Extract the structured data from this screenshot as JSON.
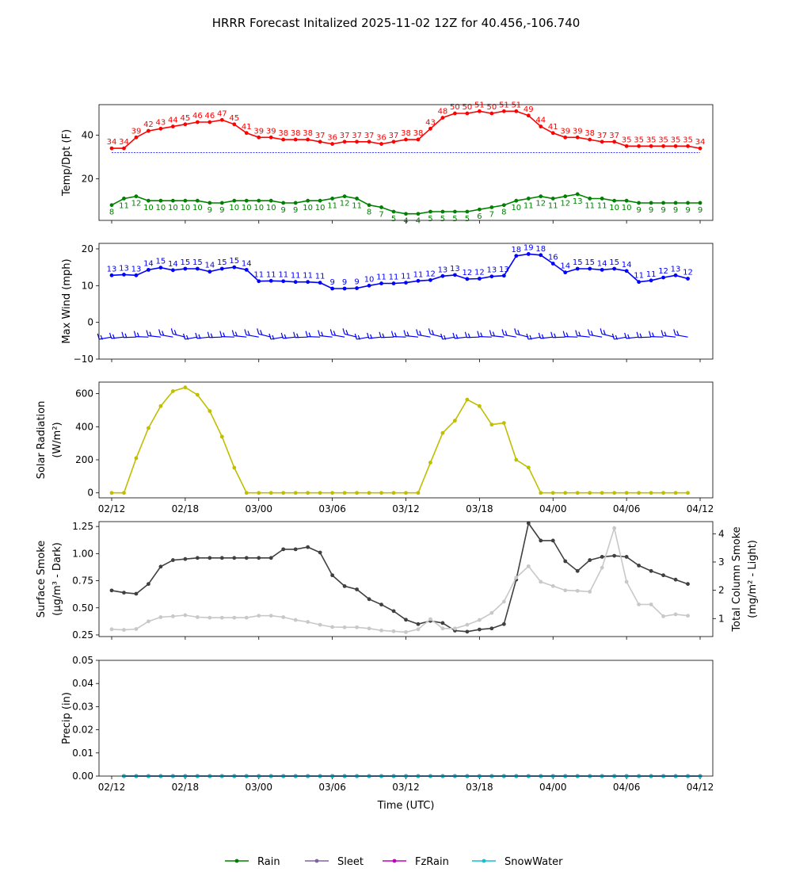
{
  "chart_data": {
    "title": "HRRR Forecast Initalized 2025-11-02 12Z for 40.456,-106.740",
    "xlabel": "Time (UTC)",
    "x_hours": [
      0,
      1,
      2,
      3,
      4,
      5,
      6,
      7,
      8,
      9,
      10,
      11,
      12,
      13,
      14,
      15,
      16,
      17,
      18,
      19,
      20,
      21,
      22,
      23,
      24,
      25,
      26,
      27,
      28,
      29,
      30,
      31,
      32,
      33,
      34,
      35,
      36,
      37,
      38,
      39,
      40,
      41,
      42,
      43,
      44,
      45,
      46,
      47,
      48
    ],
    "x_ticks": [
      {
        "hour": 0,
        "label": "02/12"
      },
      {
        "hour": 6,
        "label": "02/18"
      },
      {
        "hour": 12,
        "label": "03/00"
      },
      {
        "hour": 18,
        "label": "03/06"
      },
      {
        "hour": 24,
        "label": "03/12"
      },
      {
        "hour": 30,
        "label": "03/18"
      },
      {
        "hour": 36,
        "label": "04/00"
      },
      {
        "hour": 42,
        "label": "04/06"
      },
      {
        "hour": 48,
        "label": "04/12"
      }
    ],
    "panels": [
      {
        "type": "line",
        "ylabel": "Temp/Dpt (F)",
        "ylim": [
          1,
          54
        ],
        "yticks": [
          20,
          40
        ],
        "series": [
          {
            "name": "Temperature",
            "color": "#ff0000",
            "values": [
              34,
              34,
              39,
              42,
              43,
              44,
              45,
              46,
              46,
              47,
              45,
              41,
              39,
              39,
              38,
              38,
              38,
              37,
              36,
              37,
              37,
              37,
              36,
              37,
              38,
              38,
              43,
              48,
              50,
              50,
              51,
              50,
              51,
              51,
              49,
              44,
              41,
              39,
              39,
              38,
              37,
              37,
              35,
              35,
              35,
              35,
              35,
              35,
              34
            ],
            "labels": [
              "34",
              "34",
              "39",
              "42",
              "43",
              "44",
              "45",
              "46",
              "46",
              "47",
              "45",
              "41",
              "39",
              "39",
              "38",
              "38",
              "38",
              "37",
              "36",
              "37",
              "37",
              "37",
              "36",
              "37",
              "38",
              "38",
              "43",
              "48",
              "50",
              "50",
              "51",
              "50",
              "51",
              "51",
              "49",
              "44",
              "41",
              "39",
              "39",
              "38",
              "37",
              "37",
              "35",
              "35",
              "35",
              "35",
              "35",
              "35",
              "34"
            ]
          },
          {
            "name": "Dewpoint",
            "color": "#008000",
            "values": [
              8,
              11,
              12,
              10,
              10,
              10,
              10,
              10,
              9,
              9,
              10,
              10,
              10,
              10,
              9,
              9,
              10,
              10,
              11,
              12,
              11,
              8,
              7,
              5,
              4,
              4,
              5,
              5,
              5,
              5,
              6,
              7,
              8,
              10,
              11,
              12,
              11,
              12,
              13,
              11,
              11,
              10,
              10,
              9,
              9,
              9,
              9,
              9,
              9
            ],
            "labels": [
              "8",
              "11",
              "12",
              "10",
              "10",
              "10",
              "10",
              "10",
              "9",
              "9",
              "10",
              "10",
              "10",
              "10",
              "9",
              "9",
              "10",
              "10",
              "11",
              "12",
              "11",
              "8",
              "7",
              "5",
              "4",
              "4",
              "5",
              "5",
              "5",
              "5",
              "6",
              "7",
              "8",
              "10",
              "11",
              "12",
              "11",
              "12",
              "13",
              "11",
              "11",
              "10",
              "10",
              "9",
              "9",
              "9",
              "9",
              "9",
              "9"
            ]
          }
        ],
        "reference_line": {
          "value": 32,
          "color": "#0000ff",
          "style": "dashed"
        }
      },
      {
        "type": "line",
        "ylabel": "Max Wind (mph)",
        "ylim": [
          -10,
          21.5
        ],
        "yticks": [
          -10,
          0,
          10,
          20
        ],
        "series": [
          {
            "name": "Max Wind",
            "color": "#0000ff",
            "values": [
              12.8,
              13,
              12.8,
              14.3,
              14.9,
              14.2,
              14.6,
              14.6,
              13.8,
              14.6,
              15,
              14.3,
              11.2,
              11.3,
              11.2,
              11,
              11,
              10.8,
              9.2,
              9.2,
              9.3,
              10,
              10.6,
              10.6,
              10.8,
              11.3,
              11.5,
              12.6,
              12.9,
              11.8,
              11.9,
              12.5,
              12.7,
              18.1,
              18.6,
              18.3,
              16,
              13.6,
              14.6,
              14.6,
              14.3,
              14.6,
              14,
              11,
              11.4,
              12.2,
              12.8,
              11.9
            ],
            "labels": [
              "13",
              "13",
              "13",
              "14",
              "15",
              "14",
              "15",
              "15",
              "14",
              "15",
              "15",
              "14",
              "11",
              "11",
              "11",
              "11",
              "11",
              "11",
              "9",
              "9",
              "9",
              "10",
              "11",
              "11",
              "11",
              "11",
              "12",
              "13",
              "13",
              "12",
              "12",
              "13",
              "13",
              "18",
              "19",
              "18",
              "16",
              "14",
              "15",
              "15",
              "14",
              "15",
              "14",
              "11",
              "11",
              "12",
              "13",
              "12"
            ]
          }
        ],
        "wind_barbs": {
          "row_value": -4,
          "color": "#0000ff",
          "count": 48
        }
      },
      {
        "type": "line",
        "ylabel": "Solar Radiation",
        "ylabel_units": "(W/m²)",
        "ylim": [
          -30,
          670
        ],
        "yticks": [
          0,
          200,
          400,
          600
        ],
        "series": [
          {
            "name": "Solar Radiation",
            "color": "#bfbf00",
            "values": [
              0,
              0,
              210,
              392,
              525,
              615,
              638,
              593,
              495,
              340,
              152,
              0,
              0,
              0,
              0,
              0,
              0,
              0,
              0,
              0,
              0,
              0,
              0,
              0,
              0,
              0,
              183,
              362,
              437,
              564,
              525,
              413,
              423,
              200,
              153,
              0,
              0,
              0,
              0,
              0,
              0,
              0,
              0,
              0,
              0,
              0,
              0,
              0
            ]
          }
        ]
      },
      {
        "type": "line",
        "ylabel": "Surface Smoke",
        "ylabel_units": "(μg/m³ - Dark)",
        "ylabel_right": "Total Column Smoke",
        "ylabel_right_units": "(mg/m² - Light)",
        "ylim": [
          0.235,
          1.295
        ],
        "yticks": [
          0.25,
          0.5,
          0.75,
          1.0,
          1.25
        ],
        "ytick_labels": [
          "0.25",
          "0.50",
          "0.75",
          "1.00",
          "1.25"
        ],
        "ylim_right": [
          0.363,
          4.43
        ],
        "yticks_right": [
          1,
          2,
          3,
          4
        ],
        "series": [
          {
            "name": "Surface Smoke",
            "axis": "left",
            "color": "#404040",
            "values": [
              0.66,
              0.64,
              0.63,
              0.72,
              0.88,
              0.94,
              0.95,
              0.96,
              0.96,
              0.96,
              0.96,
              0.96,
              0.96,
              0.96,
              1.04,
              1.04,
              1.06,
              1.01,
              0.8,
              0.7,
              0.67,
              0.58,
              0.53,
              0.47,
              0.39,
              0.35,
              0.38,
              0.36,
              0.29,
              0.28,
              0.3,
              0.31,
              0.35,
              0.76,
              1.28,
              1.12,
              1.12,
              0.93,
              0.84,
              0.94,
              0.97,
              0.98,
              0.97,
              0.89,
              0.84,
              0.8,
              0.76,
              0.72
            ]
          },
          {
            "name": "Total Column Smoke",
            "axis": "right",
            "color": "#c8c8c8",
            "values": [
              0.62,
              0.6,
              0.63,
              0.9,
              1.05,
              1.08,
              1.12,
              1.05,
              1.03,
              1.03,
              1.03,
              1.03,
              1.1,
              1.1,
              1.05,
              0.95,
              0.88,
              0.78,
              0.7,
              0.69,
              0.69,
              0.65,
              0.58,
              0.55,
              0.52,
              0.62,
              0.98,
              0.65,
              0.65,
              0.78,
              0.95,
              1.2,
              1.6,
              2.45,
              2.85,
              2.3,
              2.15,
              2.0,
              1.98,
              1.95,
              2.8,
              4.2,
              2.3,
              1.5,
              1.5,
              1.08,
              1.15,
              1.1
            ]
          }
        ]
      },
      {
        "type": "line",
        "ylabel": "Precip (in)",
        "ylim": [
          0,
          0.05
        ],
        "yticks": [
          0,
          0.01,
          0.02,
          0.03,
          0.04,
          0.05
        ],
        "ytick_labels": [
          "0.00",
          "0.01",
          "0.02",
          "0.03",
          "0.04",
          "0.05"
        ],
        "start_hour": 1,
        "series": [
          {
            "name": "Rain",
            "color": "#008000",
            "values": [
              0,
              0,
              0,
              0,
              0,
              0,
              0,
              0,
              0,
              0,
              0,
              0,
              0,
              0,
              0,
              0,
              0,
              0,
              0,
              0,
              0,
              0,
              0,
              0,
              0,
              0,
              0,
              0,
              0,
              0,
              0,
              0,
              0,
              0,
              0,
              0,
              0,
              0,
              0,
              0,
              0,
              0,
              0,
              0,
              0,
              0,
              0,
              0
            ]
          },
          {
            "name": "Sleet",
            "color": "#8064a2",
            "values": [
              0,
              0,
              0,
              0,
              0,
              0,
              0,
              0,
              0,
              0,
              0,
              0,
              0,
              0,
              0,
              0,
              0,
              0,
              0,
              0,
              0,
              0,
              0,
              0,
              0,
              0,
              0,
              0,
              0,
              0,
              0,
              0,
              0,
              0,
              0,
              0,
              0,
              0,
              0,
              0,
              0,
              0,
              0,
              0,
              0,
              0,
              0,
              0
            ]
          },
          {
            "name": "FzRain",
            "color": "#bf00bf",
            "values": [
              0,
              0,
              0,
              0,
              0,
              0,
              0,
              0,
              0,
              0,
              0,
              0,
              0,
              0,
              0,
              0,
              0,
              0,
              0,
              0,
              0,
              0,
              0,
              0,
              0,
              0,
              0,
              0,
              0,
              0,
              0,
              0,
              0,
              0,
              0,
              0,
              0,
              0,
              0,
              0,
              0,
              0,
              0,
              0,
              0,
              0,
              0,
              0
            ]
          },
          {
            "name": "SnowWater",
            "color": "#17becf",
            "values": [
              0,
              0,
              0,
              0,
              0,
              0,
              0,
              0,
              0,
              0,
              0,
              0,
              0,
              0,
              0,
              0,
              0,
              0,
              0,
              0,
              0,
              0,
              0,
              0,
              0,
              0,
              0,
              0,
              0,
              0,
              0,
              0,
              0,
              0,
              0,
              0,
              0,
              0,
              0,
              0,
              0,
              0,
              0,
              0,
              0,
              0,
              0,
              0
            ]
          }
        ]
      }
    ],
    "legend": {
      "position": "bottom-center",
      "entries": [
        "Rain",
        "Sleet",
        "FzRain",
        "SnowWater"
      ]
    }
  }
}
